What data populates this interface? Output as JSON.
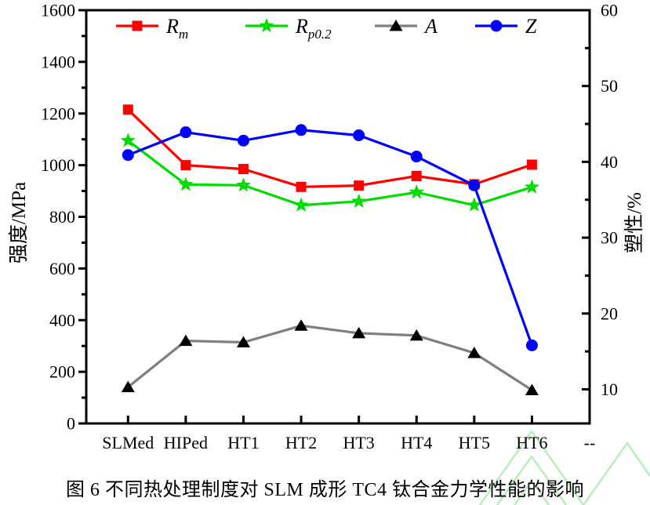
{
  "figure": {
    "caption": "图 6 不同热处理制度对 SLM 成形 TC4 钛合金力学性能的影响",
    "watermark_color": "#b9edb9",
    "frame_color": "#000000"
  },
  "chart_data": {
    "type": "line",
    "categories": [
      "SLMed",
      "HIPed",
      "HT1",
      "HT2",
      "HT3",
      "HT4",
      "HT5",
      "HT6",
      "--"
    ],
    "left_axis": {
      "label": "强度/MPa",
      "min": 0,
      "max": 1600,
      "major_ticks": [
        0,
        200,
        400,
        600,
        800,
        1000,
        1200,
        1400,
        1600
      ],
      "minor_ticks": [
        100,
        300,
        500,
        700,
        900,
        1100,
        1300,
        1500
      ]
    },
    "right_axis": {
      "label": "塑性/%",
      "min": 5.5,
      "max": 60,
      "major_ticks": [
        10,
        20,
        30,
        40,
        50,
        60
      ],
      "minor_ticks": [
        15,
        25,
        35,
        45,
        55
      ]
    },
    "grid": false,
    "legend_position": "top-inside",
    "series": [
      {
        "name": "Rm",
        "label_main": "R",
        "label_sub": "m",
        "axis": "left",
        "marker": "square",
        "marker_color": "#ff0000",
        "line_color": "#ff0000",
        "values": [
          1215,
          1000,
          985,
          916,
          921,
          958,
          926,
          1002
        ]
      },
      {
        "name": "Rp0.2",
        "label_main": "R",
        "label_sub": "p0.2",
        "axis": "left",
        "marker": "star",
        "marker_color": "#00dc00",
        "line_color": "#00dc00",
        "values": [
          1095,
          925,
          922,
          845,
          860,
          895,
          845,
          915
        ]
      },
      {
        "name": "A",
        "label_main": "A",
        "label_sub": "",
        "axis": "right",
        "marker": "triangle",
        "marker_color": "#000000",
        "line_color": "#7f7f7f",
        "values": [
          10.3,
          16.4,
          16.2,
          18.4,
          17.4,
          17.1,
          14.8,
          9.9
        ]
      },
      {
        "name": "Z",
        "label_main": "Z",
        "label_sub": "",
        "axis": "right",
        "marker": "circle",
        "marker_color": "#0000ff",
        "line_color": "#0000ff",
        "values": [
          40.9,
          43.9,
          42.8,
          44.2,
          43.5,
          40.7,
          36.9,
          15.8
        ]
      }
    ]
  }
}
